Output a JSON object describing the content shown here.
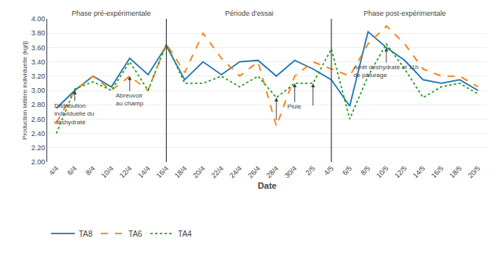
{
  "chart_data": {
    "type": "line",
    "xlabel": "Date",
    "ylabel": "Production laitière individuelle (kg/j)",
    "categories": [
      "4/4",
      "6/4",
      "8/4",
      "10/4",
      "12/4",
      "14/4",
      "16/4",
      "18/4",
      "20/4",
      "22/4",
      "24/4",
      "26/4",
      "28/4",
      "30/4",
      "2/5",
      "4/5",
      "6/5",
      "8/5",
      "10/5",
      "12/5",
      "14/5",
      "16/5",
      "18/5",
      "20/5"
    ],
    "series": [
      {
        "name": "TA8",
        "line_style": "solid",
        "values": [
          2.75,
          3.0,
          3.2,
          3.05,
          3.45,
          3.22,
          3.62,
          3.15,
          3.4,
          3.22,
          3.4,
          3.42,
          3.2,
          3.42,
          3.3,
          3.15,
          2.78,
          3.82,
          3.6,
          3.42,
          3.15,
          3.1,
          3.15,
          3.0
        ]
      },
      {
        "name": "TA6",
        "line_style": "dash",
        "values": [
          2.55,
          3.0,
          3.2,
          3.0,
          3.2,
          3.0,
          3.65,
          3.25,
          3.8,
          3.45,
          3.2,
          3.4,
          2.5,
          3.2,
          3.4,
          3.3,
          3.2,
          3.65,
          3.9,
          3.65,
          3.3,
          3.2,
          3.2,
          3.05
        ]
      },
      {
        "name": "TA4",
        "line_style": "dot",
        "values": [
          2.4,
          3.02,
          3.12,
          3.0,
          3.4,
          3.0,
          3.65,
          3.1,
          3.1,
          3.2,
          3.05,
          3.2,
          2.9,
          3.1,
          3.1,
          3.58,
          2.6,
          3.2,
          3.65,
          3.3,
          2.9,
          3.05,
          3.1,
          2.95
        ]
      }
    ],
    "ylim": [
      2.0,
      4.0
    ],
    "yticks": [
      {
        "value": 2.0,
        "label": "2.00"
      },
      {
        "value": 2.2,
        "label": "2.20"
      },
      {
        "value": 2.4,
        "label": "2.40"
      },
      {
        "value": 2.6,
        "label": "2.60"
      },
      {
        "value": 2.8,
        "label": "2.80"
      },
      {
        "value": 3.0,
        "label": "3.00"
      },
      {
        "value": 3.2,
        "label": "3.20"
      },
      {
        "value": 3.4,
        "label": "3.40"
      },
      {
        "value": 3.6,
        "label": "3.60"
      },
      {
        "value": 3.8,
        "label": "3.80"
      },
      {
        "value": 4.0,
        "label": "4.00"
      }
    ],
    "grid": "y",
    "legend": "lower left",
    "vlines": [
      "16/4",
      "4/5"
    ],
    "phases": [
      "Phase pré-expérimentale",
      "Période d'essai",
      "Phase post-expérimentale"
    ],
    "annotations": [
      {
        "text": "Distribution\nindividuelle du\ndéshydraté",
        "x": "6/4",
        "series": "TA8"
      },
      {
        "text": "Abreuvoir\nau champ",
        "x": "12/4",
        "series": "TA6"
      },
      {
        "text": "Pluie",
        "x": [
          "28/4",
          "30/4",
          "2/5"
        ],
        "series": "TA4"
      },
      {
        "text": "Arrêt déshydraté et 11h\nde pâturage",
        "x": "10/5",
        "series": "TA8"
      }
    ]
  }
}
